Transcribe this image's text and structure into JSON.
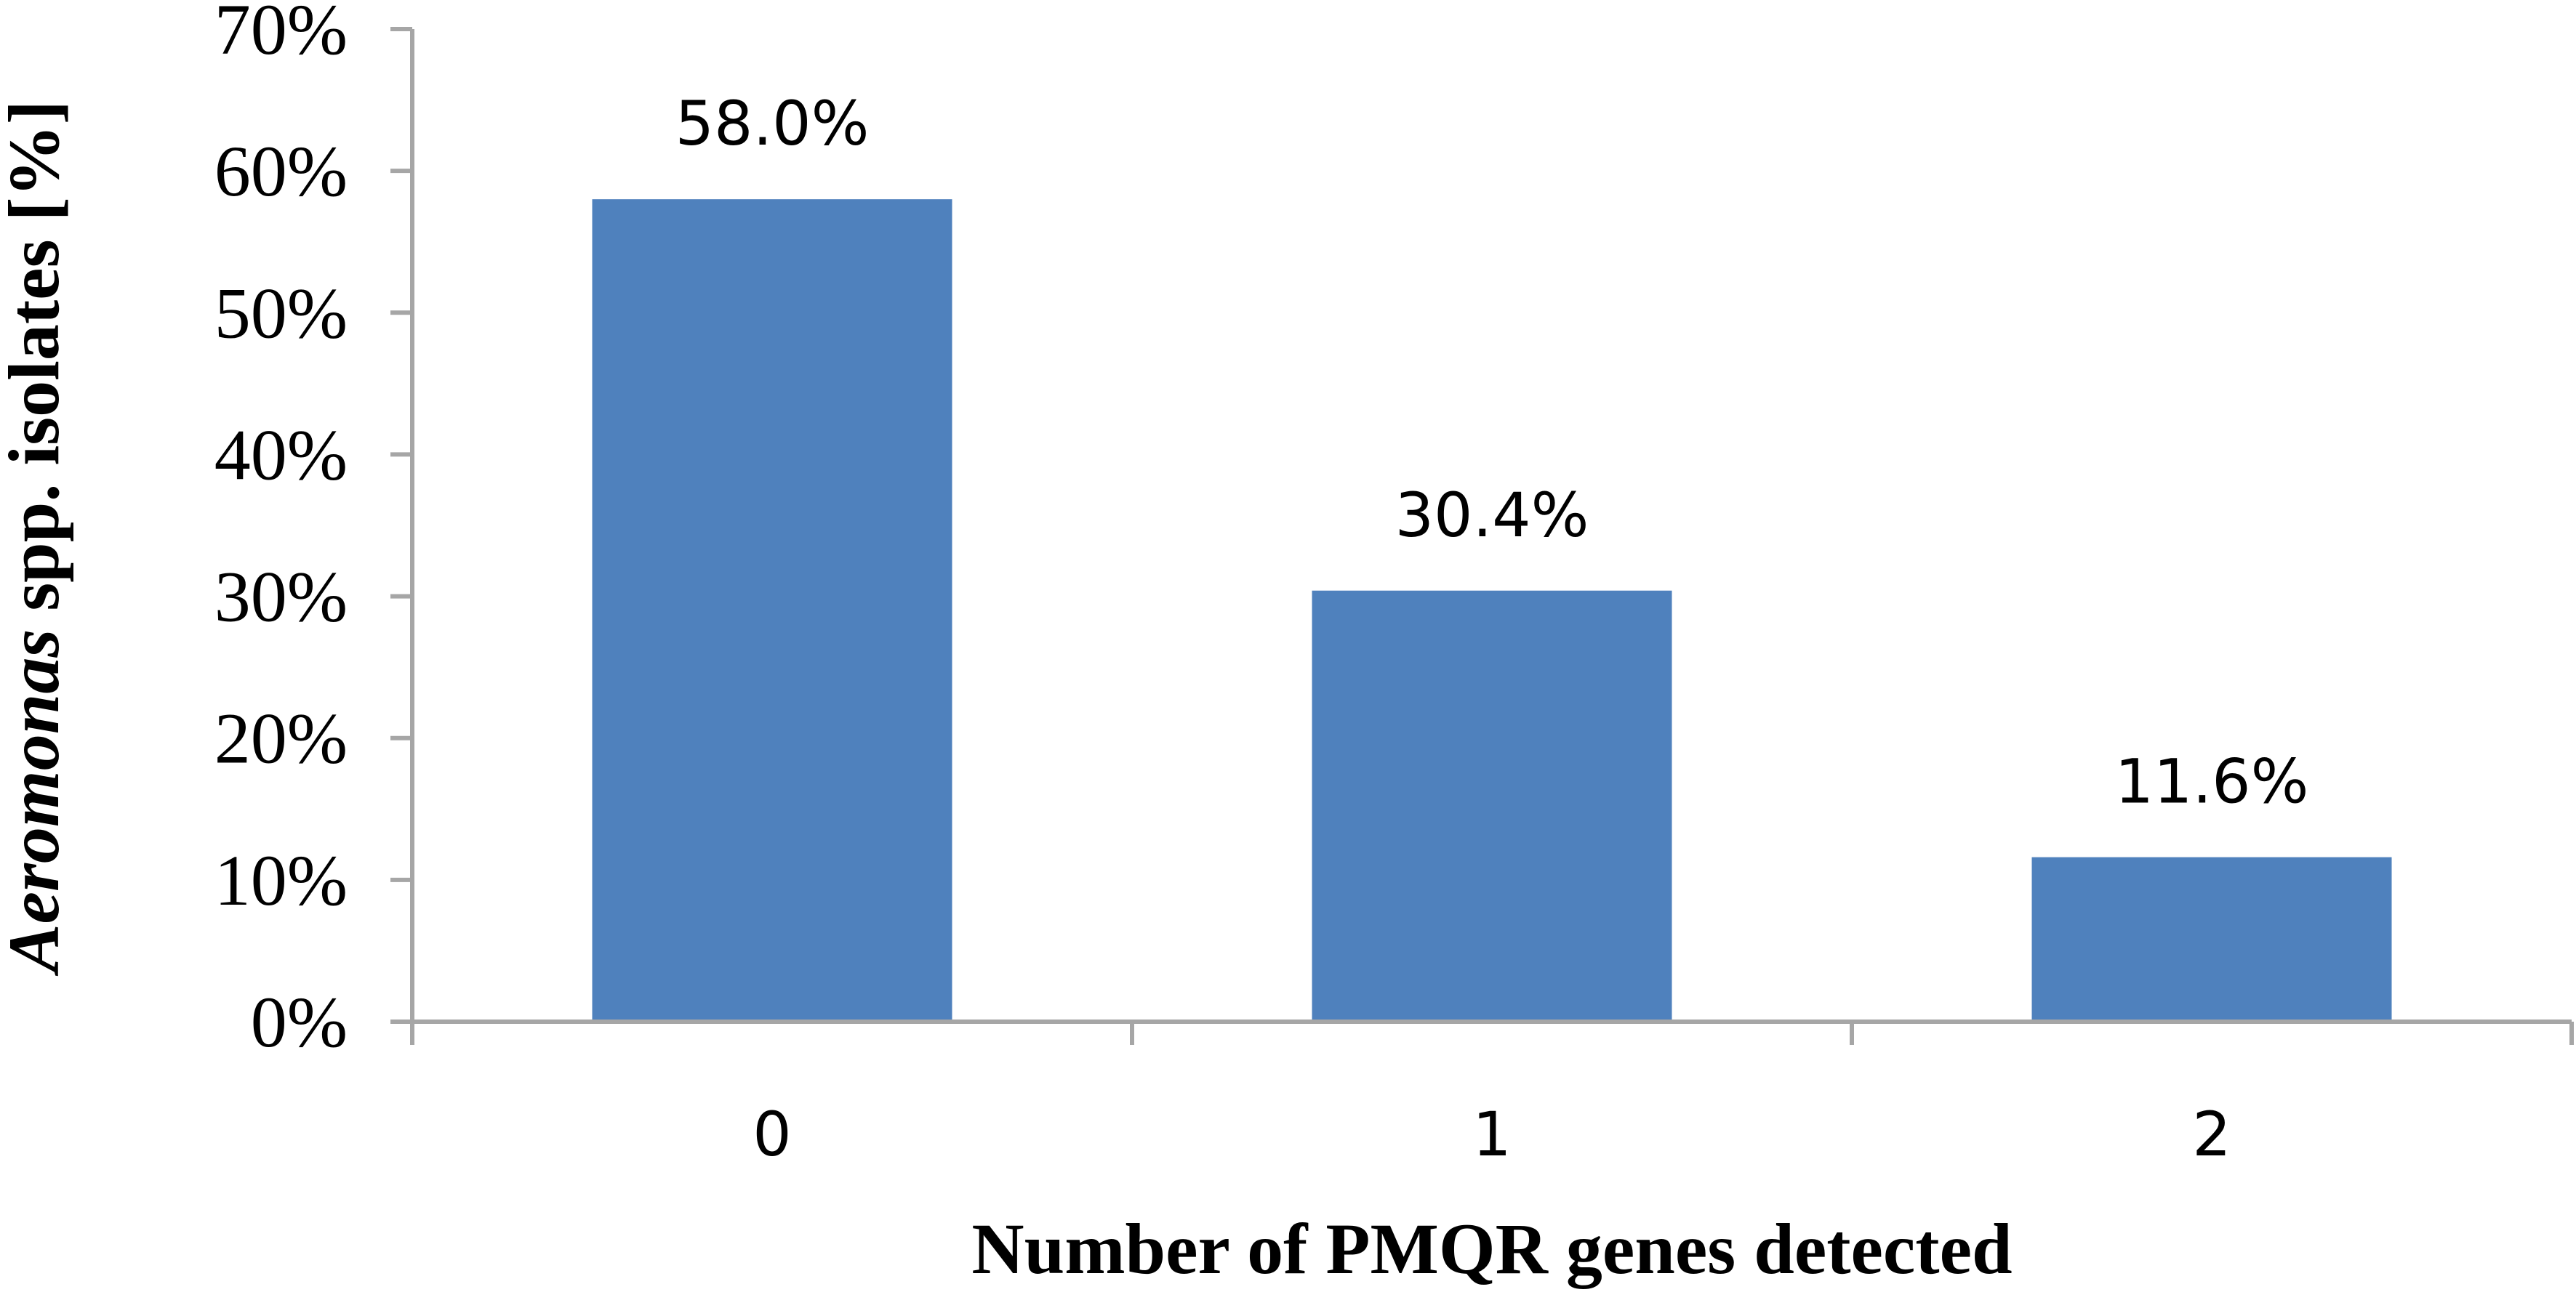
{
  "chart_data": {
    "type": "bar",
    "categories": [
      "0",
      "1",
      "2"
    ],
    "values": [
      58.0,
      30.4,
      11.6
    ],
    "data_labels": [
      "58.0%",
      "30.4%",
      "11.6%"
    ],
    "xlabel": "Number of PMQR genes detected",
    "ylabel": {
      "italic_part": "Aeromonas",
      "rest": " spp. isolates [%]"
    },
    "ylim": [
      0,
      70
    ],
    "yticks": [
      0,
      10,
      20,
      30,
      40,
      50,
      60,
      70
    ],
    "ytick_labels": [
      "0%",
      "10%",
      "20%",
      "30%",
      "40%",
      "50%",
      "60%",
      "70%"
    ],
    "grid": false,
    "legend": "none",
    "colors": {
      "bar": "#4f81bd",
      "axis": "#a6a6a6"
    }
  }
}
